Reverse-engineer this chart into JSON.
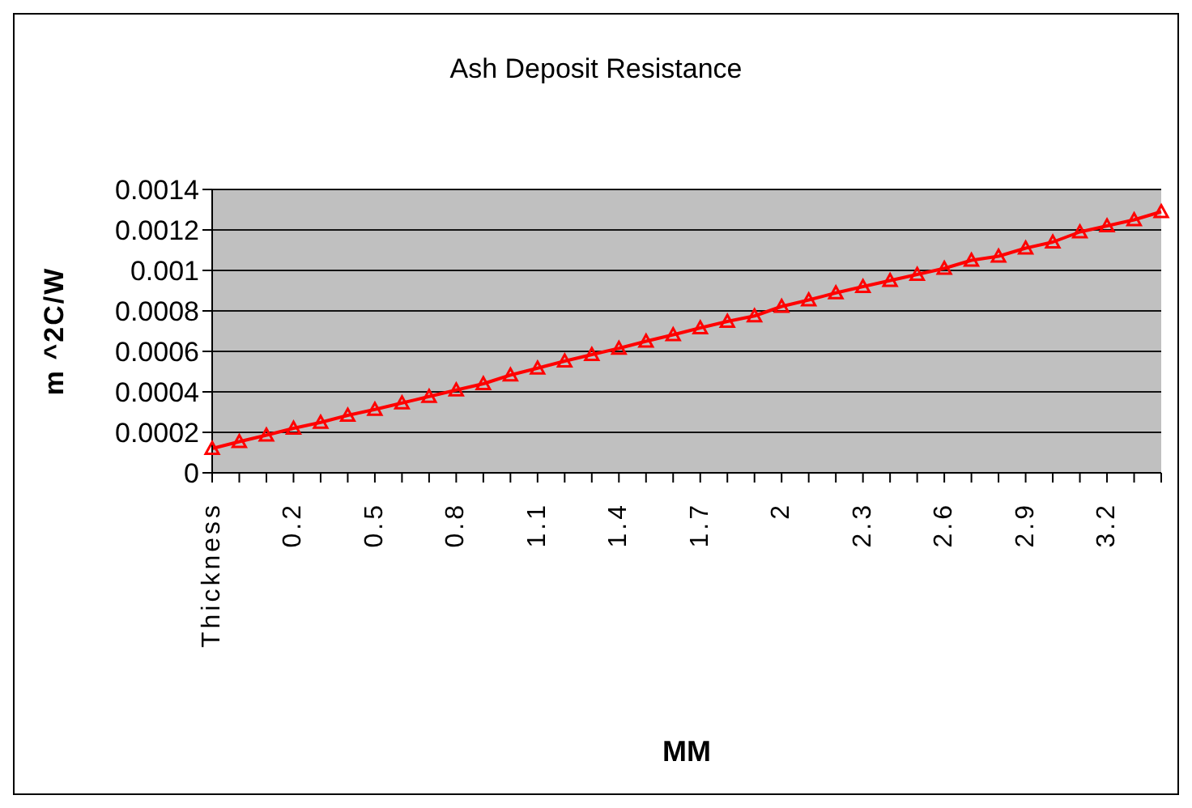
{
  "chart_data": {
    "type": "line",
    "title": "Ash Deposit Resistance",
    "xlabel": "MM",
    "ylabel": "m ^2C/W",
    "categories": [
      "Thickness",
      null,
      null,
      "0.2",
      null,
      null,
      "0.5",
      null,
      null,
      "0.8",
      null,
      null,
      "1.1",
      null,
      null,
      "1.4",
      null,
      null,
      "1.7",
      null,
      null,
      "2",
      null,
      null,
      "2.3",
      null,
      null,
      "2.6",
      null,
      null,
      "2.9",
      null,
      null,
      "3.2",
      null,
      null
    ],
    "series": [
      {
        "color": "#ff0000",
        "values": [
          0.00012,
          0.000154,
          0.000186,
          0.00022,
          0.000249,
          0.000284,
          0.000313,
          0.000345,
          0.000377,
          0.000409,
          0.00044,
          0.000483,
          0.000517,
          0.000552,
          0.000584,
          0.000615,
          0.00065,
          0.000682,
          0.000716,
          0.000748,
          0.000775,
          0.000822,
          0.000854,
          0.000889,
          0.00092,
          0.00095,
          0.00098,
          0.00101,
          0.00105,
          0.00107,
          0.00111,
          0.00114,
          0.00119,
          0.00122,
          0.00125,
          0.00129
        ]
      }
    ],
    "ylim": [
      0,
      0.0014
    ],
    "yticks": [
      0,
      0.0002,
      0.0004,
      0.0006,
      0.0008,
      0.001,
      0.0012,
      0.0014
    ],
    "grid": "y",
    "legend": false,
    "marker": "triangle",
    "line_style": "solid"
  }
}
